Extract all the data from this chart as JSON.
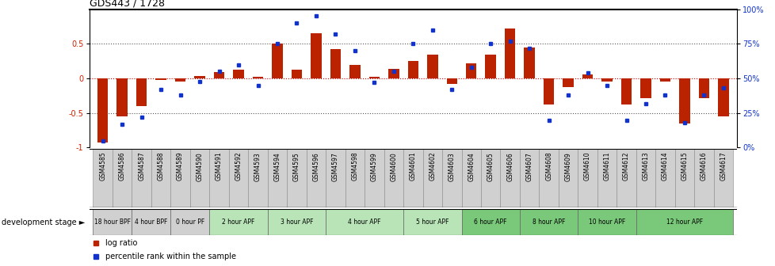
{
  "title": "GDS443 / 1728",
  "samples": [
    "GSM4585",
    "GSM4586",
    "GSM4587",
    "GSM4588",
    "GSM4589",
    "GSM4590",
    "GSM4591",
    "GSM4592",
    "GSM4593",
    "GSM4594",
    "GSM4595",
    "GSM4596",
    "GSM4597",
    "GSM4598",
    "GSM4599",
    "GSM4600",
    "GSM4601",
    "GSM4602",
    "GSM4603",
    "GSM4604",
    "GSM4605",
    "GSM4606",
    "GSM4607",
    "GSM4608",
    "GSM4609",
    "GSM4610",
    "GSM4611",
    "GSM4612",
    "GSM4613",
    "GSM4614",
    "GSM4615",
    "GSM4616",
    "GSM4617"
  ],
  "log_ratio": [
    -0.93,
    -0.55,
    -0.4,
    -0.02,
    -0.04,
    0.03,
    0.09,
    0.13,
    0.02,
    0.5,
    0.13,
    0.65,
    0.42,
    0.2,
    0.02,
    0.14,
    0.25,
    0.35,
    -0.08,
    0.22,
    0.35,
    0.72,
    0.45,
    -0.38,
    -0.13,
    0.06,
    -0.05,
    -0.38,
    -0.28,
    -0.05,
    -0.65,
    -0.28,
    -0.55
  ],
  "percentile": [
    5,
    17,
    22,
    42,
    38,
    48,
    55,
    60,
    45,
    75,
    90,
    95,
    82,
    70,
    47,
    55,
    75,
    85,
    42,
    58,
    75,
    77,
    72,
    20,
    38,
    54,
    45,
    20,
    32,
    38,
    18,
    38,
    43
  ],
  "stages": [
    {
      "label": "18 hour BPF",
      "start": 0,
      "end": 2,
      "color": "#d0d0d0"
    },
    {
      "label": "4 hour BPF",
      "start": 2,
      "end": 4,
      "color": "#d0d0d0"
    },
    {
      "label": "0 hour PF",
      "start": 4,
      "end": 6,
      "color": "#d0d0d0"
    },
    {
      "label": "2 hour APF",
      "start": 6,
      "end": 9,
      "color": "#b8e4b8"
    },
    {
      "label": "3 hour APF",
      "start": 9,
      "end": 12,
      "color": "#b8e4b8"
    },
    {
      "label": "4 hour APF",
      "start": 12,
      "end": 16,
      "color": "#b8e4b8"
    },
    {
      "label": "5 hour APF",
      "start": 16,
      "end": 19,
      "color": "#b8e4b8"
    },
    {
      "label": "6 hour APF",
      "start": 19,
      "end": 22,
      "color": "#7ac87a"
    },
    {
      "label": "8 hour APF",
      "start": 22,
      "end": 25,
      "color": "#7ac87a"
    },
    {
      "label": "10 hour APF",
      "start": 25,
      "end": 28,
      "color": "#7ac87a"
    },
    {
      "label": "12 hour APF",
      "start": 28,
      "end": 33,
      "color": "#7ac87a"
    }
  ],
  "bar_color": "#bb2200",
  "dot_color": "#1133cc",
  "zero_line_color": "#cc0000",
  "dotted_line_color": "#555555",
  "ylim": [
    -1.0,
    1.0
  ],
  "left_yticks": [
    -1.0,
    -0.5,
    0.0,
    0.5
  ],
  "left_yticklabels": [
    "-1",
    "-0.5",
    "0",
    "0.5"
  ],
  "right_yticks_pct": [
    0,
    25,
    50,
    75,
    100
  ],
  "fig_width": 9.79,
  "fig_height": 3.36,
  "sample_box_color": "#d0d0d0",
  "sample_box_edge": "#888888",
  "legend_bar_label": "log ratio",
  "legend_dot_label": "percentile rank within the sample",
  "dev_stage_label": "development stage ►"
}
